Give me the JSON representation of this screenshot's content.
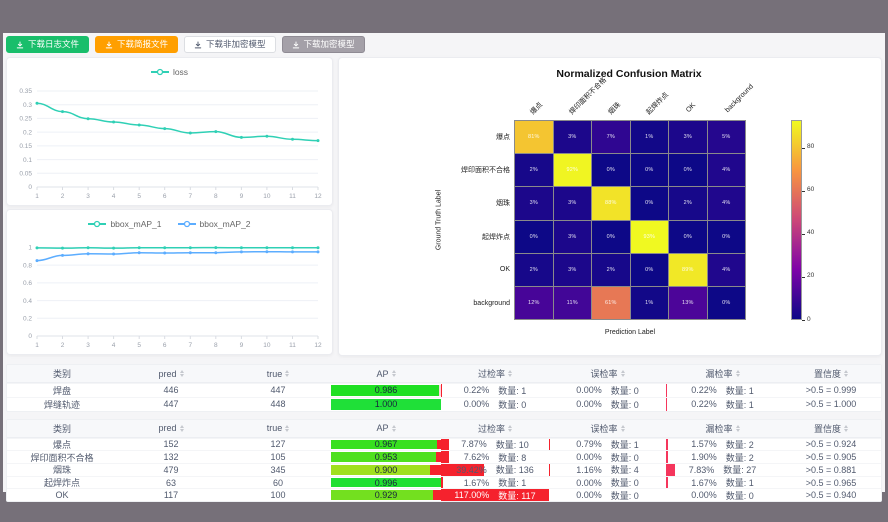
{
  "colors": {
    "accent_teal": "#2fd0b5",
    "accent_blue": "#5cadff",
    "over_bar": "#f5222d",
    "false_bar": "#f5222d",
    "miss_bar": "#f5365c"
  },
  "toolbar": {
    "buttons": [
      {
        "name": "download-log-button",
        "label": "下载日志文件",
        "bg": "#19be6b",
        "fg": "#ffffff",
        "border": "#19be6b"
      },
      {
        "name": "download-report-button",
        "label": "下载简报文件",
        "bg": "#ff9f00",
        "fg": "#ffffff",
        "border": "#ff9f00"
      },
      {
        "name": "download-plain-model-button",
        "label": "下载非加密模型",
        "bg": "#ffffff",
        "fg": "#515a6e",
        "border": "#dcdee2"
      },
      {
        "name": "download-encrypted-model-button",
        "label": "下载加密模型",
        "bg": "#a4a0a8",
        "fg": "#ffffff",
        "border": "#8f8b94"
      }
    ]
  },
  "chart_data": [
    {
      "type": "line",
      "x": [
        1,
        2,
        3,
        4,
        5,
        6,
        7,
        8,
        9,
        10,
        11,
        12
      ],
      "ylim": [
        0,
        0.35
      ],
      "ytick_values": [
        0,
        0.05,
        0.1,
        0.15,
        0.2,
        0.25,
        0.3,
        0.35
      ],
      "ytick_labels": [
        "0",
        "0.05",
        "0.1",
        "0.15",
        "0.2",
        "0.25",
        "0.3",
        "0.35"
      ],
      "legend_position": "top",
      "grid": true,
      "series": [
        {
          "name": "loss",
          "color": "#2fd0b5",
          "values": [
            0.305,
            0.275,
            0.249,
            0.237,
            0.226,
            0.213,
            0.197,
            0.202,
            0.181,
            0.185,
            0.174,
            0.169
          ]
        }
      ]
    },
    {
      "type": "line",
      "x": [
        1,
        2,
        3,
        4,
        5,
        6,
        7,
        8,
        9,
        10,
        11,
        12
      ],
      "ylim": [
        0,
        1.05
      ],
      "ytick_values": [
        0,
        0.2,
        0.4,
        0.6,
        0.8,
        1
      ],
      "ytick_labels": [
        "0",
        "0.2",
        "0.4",
        "0.6",
        "0.8",
        "1"
      ],
      "legend_position": "top",
      "grid": true,
      "series": [
        {
          "name": "bbox_mAP_1",
          "color": "#2fd0b5",
          "values": [
            0.995,
            0.992,
            0.996,
            0.992,
            0.996,
            0.997,
            0.997,
            0.998,
            0.996,
            0.996,
            0.997,
            0.997
          ]
        },
        {
          "name": "bbox_mAP_2",
          "color": "#5cadff",
          "values": [
            0.851,
            0.91,
            0.928,
            0.926,
            0.94,
            0.937,
            0.941,
            0.94,
            0.95,
            0.952,
            0.95,
            0.949
          ]
        }
      ]
    },
    {
      "type": "heatmap",
      "title": "Normalized Confusion Matrix",
      "xlabel": "Prediction Label",
      "ylabel": "Ground Truth Label",
      "labels": [
        "爆点",
        "焊印面积不合格",
        "烟珠",
        "起焊炸点",
        "OK",
        "background"
      ],
      "unit": "%",
      "vmax": 93,
      "colorbar_ticks": [
        0,
        20,
        40,
        60,
        80
      ],
      "rows": [
        [
          81,
          3,
          7,
          1,
          3,
          5
        ],
        [
          2,
          92,
          0,
          0,
          0,
          4
        ],
        [
          3,
          3,
          88,
          0,
          2,
          4
        ],
        [
          0,
          3,
          0,
          93,
          0,
          0
        ],
        [
          2,
          3,
          2,
          0,
          89,
          4
        ],
        [
          12,
          11,
          61,
          1,
          13,
          0
        ]
      ]
    }
  ],
  "labels": {
    "count": "数量"
  },
  "tables": [
    {
      "headers": [
        {
          "label": "类别",
          "sortable": false
        },
        {
          "label": "pred",
          "sortable": true
        },
        {
          "label": "true",
          "sortable": true
        },
        {
          "label": "AP",
          "sortable": true
        },
        {
          "label": "过检率",
          "sortable": true
        },
        {
          "label": "误检率",
          "sortable": true
        },
        {
          "label": "漏检率",
          "sortable": true
        },
        {
          "label": "置信度",
          "sortable": true
        }
      ],
      "ap_gap_color": "#ffd6de",
      "rows": [
        {
          "label": "焊盘",
          "pred": 446,
          "true": 447,
          "ap": "0.986",
          "over_rate": {
            "pct": "0.22",
            "count": 1
          },
          "false_rate": {
            "pct": "0.00",
            "count": 0
          },
          "miss_rate": {
            "pct": "0.22",
            "count": 1
          },
          "confidence": ">0.5 = 0.999"
        },
        {
          "label": "焊缝轨迹",
          "pred": 447,
          "true": 448,
          "ap": "1.000",
          "over_rate": {
            "pct": "0.00",
            "count": 0
          },
          "false_rate": {
            "pct": "0.00",
            "count": 0
          },
          "miss_rate": {
            "pct": "0.22",
            "count": 1
          },
          "confidence": ">0.5 = 1.000"
        }
      ]
    },
    {
      "headers": [
        {
          "label": "类别",
          "sortable": false
        },
        {
          "label": "pred",
          "sortable": true
        },
        {
          "label": "true",
          "sortable": true
        },
        {
          "label": "AP",
          "sortable": true
        },
        {
          "label": "过检率",
          "sortable": true
        },
        {
          "label": "误检率",
          "sortable": true
        },
        {
          "label": "漏检率",
          "sortable": true
        },
        {
          "label": "置信度",
          "sortable": true
        }
      ],
      "ap_gap_color": "#f5222d",
      "rows": [
        {
          "label": "爆点",
          "pred": 152,
          "true": 127,
          "ap": "0.967",
          "over_rate": {
            "pct": "7.87",
            "count": 10
          },
          "false_rate": {
            "pct": "0.79",
            "count": 1
          },
          "miss_rate": {
            "pct": "1.57",
            "count": 2
          },
          "confidence": ">0.5 = 0.924"
        },
        {
          "label": "焊印面积不合格",
          "pred": 132,
          "true": 105,
          "ap": "0.953",
          "over_rate": {
            "pct": "7.62",
            "count": 8
          },
          "false_rate": {
            "pct": "0.00",
            "count": 0
          },
          "miss_rate": {
            "pct": "1.90",
            "count": 2
          },
          "confidence": ">0.5 = 0.905"
        },
        {
          "label": "烟珠",
          "pred": 479,
          "true": 345,
          "ap": "0.900",
          "over_rate": {
            "pct": "39.42",
            "count": 136
          },
          "false_rate": {
            "pct": "1.16",
            "count": 4
          },
          "miss_rate": {
            "pct": "7.83",
            "count": 27
          },
          "confidence": ">0.5 = 0.881"
        },
        {
          "label": "起焊炸点",
          "pred": 63,
          "true": 60,
          "ap": "0.996",
          "over_rate": {
            "pct": "1.67",
            "count": 1
          },
          "false_rate": {
            "pct": "0.00",
            "count": 0
          },
          "miss_rate": {
            "pct": "1.67",
            "count": 1
          },
          "confidence": ">0.5 = 0.965"
        },
        {
          "label": "OK",
          "pred": 117,
          "true": 100,
          "ap": "0.929",
          "over_rate": {
            "pct": "117.00",
            "count": 117
          },
          "false_rate": {
            "pct": "0.00",
            "count": 0
          },
          "miss_rate": {
            "pct": "0.00",
            "count": 0
          },
          "confidence": ">0.5 = 0.940"
        }
      ]
    }
  ]
}
